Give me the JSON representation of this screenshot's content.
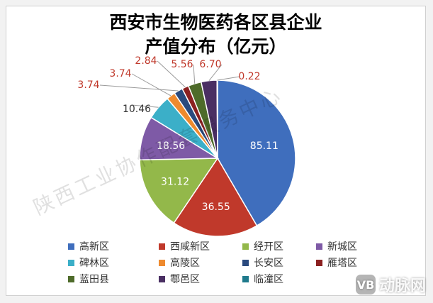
{
  "chart_data": {
    "type": "pie",
    "title": [
      "西安市生物医药各区县企业",
      "产值分布（亿元）"
    ],
    "categories": [
      "高新区",
      "西咸新区",
      "经开区",
      "新城区",
      "碑林区",
      "高陵区",
      "长安区",
      "雁塔区",
      "蓝田县",
      "鄠邑区",
      "临潼区"
    ],
    "values": [
      85.11,
      36.55,
      31.12,
      18.56,
      10.46,
      3.74,
      3.74,
      2.84,
      5.56,
      6.7,
      0.22
    ],
    "labels": [
      "85.11",
      "36.55",
      "31.12",
      "18.56",
      "10.46",
      "3.74",
      "3.74",
      "2.84",
      "5.56",
      "6.70",
      "0.22"
    ],
    "colors": [
      "#3F6EBD",
      "#C0392B",
      "#93B84A",
      "#7E5AA6",
      "#3BAFC8",
      "#EE8A2E",
      "#2A4A7E",
      "#8B2020",
      "#4E6B2A",
      "#4A2F63",
      "#1F7A8C"
    ],
    "label_colors": [
      "#ffffff",
      "#ffffff",
      "#ffffff",
      "#ffffff",
      "#333333",
      "#C0392B",
      "#C0392B",
      "#C0392B",
      "#C0392B",
      "#C0392B",
      "#C0392B"
    ],
    "legend_placement": "bottom",
    "start_angle_deg": 0,
    "direction": "clockwise"
  },
  "watermark": "陕西工业协作配套服务中心",
  "logo": {
    "mark": "VB",
    "text": "动脉网"
  }
}
